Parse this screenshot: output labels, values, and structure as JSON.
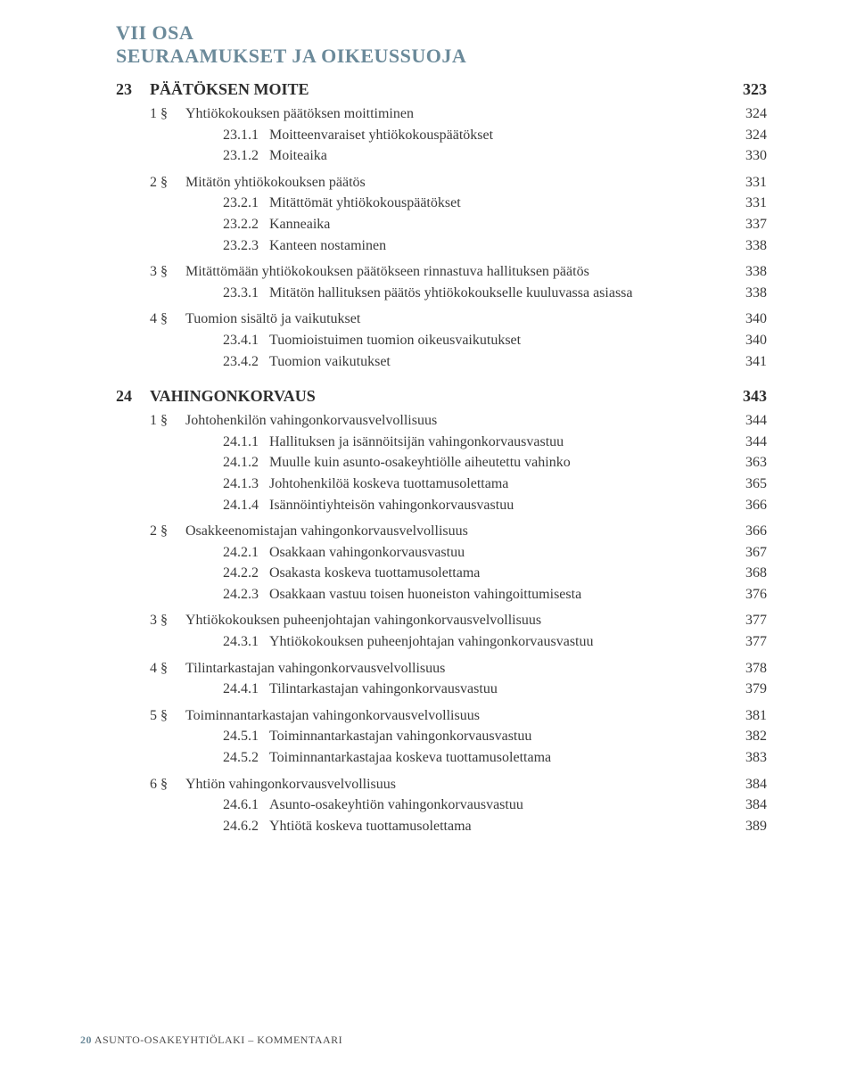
{
  "colors": {
    "accent": "#6b8a9a",
    "text": "#3a3a3a",
    "heading": "#2e2e2e",
    "background": "#ffffff"
  },
  "typography": {
    "body_fontsize": 16,
    "chapter_fontsize": 18,
    "part_fontsize": 22,
    "footer_fontsize": 12,
    "family": "Georgia, serif"
  },
  "part": {
    "label": "VII OSA",
    "title": "SEURAAMUKSET JA OIKEUSSUOJA"
  },
  "chapters": [
    {
      "num": "23",
      "title": "PÄÄTÖKSEN MOITE",
      "page": "323",
      "sections": [
        {
          "num": "1 §",
          "title": "Yhtiökokouksen päätöksen moittiminen",
          "page": "324",
          "subs": [
            {
              "num": "23.1.1",
              "title": "Moitteenvaraiset yhtiökokouspäätökset",
              "page": "324"
            },
            {
              "num": "23.1.2",
              "title": "Moiteaika",
              "page": "330"
            }
          ]
        },
        {
          "num": "2 §",
          "title": "Mitätön yhtiökokouksen päätös",
          "page": "331",
          "subs": [
            {
              "num": "23.2.1",
              "title": "Mitättömät yhtiökokouspäätökset",
              "page": "331"
            },
            {
              "num": "23.2.2",
              "title": "Kanneaika",
              "page": "337"
            },
            {
              "num": "23.2.3",
              "title": "Kanteen nostaminen",
              "page": "338"
            }
          ]
        },
        {
          "num": "3 §",
          "title": "Mitättömään yhtiökokouksen päätökseen rinnastuva hallituksen päätös",
          "page": "338",
          "subs": [
            {
              "num": "23.3.1",
              "title": "Mitätön hallituksen päätös yhtiökokoukselle kuuluvassa asiassa",
              "page": "338"
            }
          ]
        },
        {
          "num": "4 §",
          "title": "Tuomion sisältö ja vaikutukset",
          "page": "340",
          "subs": [
            {
              "num": "23.4.1",
              "title": "Tuomioistuimen tuomion oikeusvaikutukset",
              "page": "340"
            },
            {
              "num": "23.4.2",
              "title": "Tuomion vaikutukset",
              "page": "341"
            }
          ]
        }
      ]
    },
    {
      "num": "24",
      "title": "VAHINGONKORVAUS",
      "page": "343",
      "sections": [
        {
          "num": "1 §",
          "title": "Johtohenkilön vahingonkorvausvelvollisuus",
          "page": "344",
          "subs": [
            {
              "num": "24.1.1",
              "title": "Hallituksen ja isännöitsijän vahingonkorvausvastuu",
              "page": "344"
            },
            {
              "num": "24.1.2",
              "title": "Muulle kuin asunto-osakeyhtiölle aiheutettu vahinko",
              "page": "363"
            },
            {
              "num": "24.1.3",
              "title": "Johtohenkilöä koskeva tuottamusolettama",
              "page": "365"
            },
            {
              "num": "24.1.4",
              "title": "Isännöintiyhteisön vahingonkorvausvastuu",
              "page": "366"
            }
          ]
        },
        {
          "num": "2 §",
          "title": "Osakkeenomistajan vahingonkorvausvelvollisuus",
          "page": "366",
          "subs": [
            {
              "num": "24.2.1",
              "title": "Osakkaan vahingonkorvausvastuu",
              "page": "367"
            },
            {
              "num": "24.2.2",
              "title": "Osakasta koskeva tuottamusolettama",
              "page": "368"
            },
            {
              "num": "24.2.3",
              "title": "Osakkaan vastuu toisen huoneiston vahingoittumisesta",
              "page": "376"
            }
          ]
        },
        {
          "num": "3 §",
          "title": "Yhtiökokouksen puheenjohtajan vahingonkorvausvelvollisuus",
          "page": "377",
          "subs": [
            {
              "num": "24.3.1",
              "title": "Yhtiökokouksen puheenjohtajan vahingonkorvausvastuu",
              "page": "377"
            }
          ]
        },
        {
          "num": "4 §",
          "title": "Tilintarkastajan vahingonkorvausvelvollisuus",
          "page": "378",
          "subs": [
            {
              "num": "24.4.1",
              "title": "Tilintarkastajan vahingonkorvausvastuu",
              "page": "379"
            }
          ]
        },
        {
          "num": "5 §",
          "title": "Toiminnantarkastajan vahingonkorvausvelvollisuus",
          "page": "381",
          "subs": [
            {
              "num": "24.5.1",
              "title": "Toiminnantarkastajan vahingonkorvausvastuu",
              "page": "382"
            },
            {
              "num": "24.5.2",
              "title": "Toiminnantarkastajaa koskeva tuottamusolettama",
              "page": "383"
            }
          ]
        },
        {
          "num": "6 §",
          "title": "Yhtiön vahingonkorvausvelvollisuus",
          "page": "384",
          "subs": [
            {
              "num": "24.6.1",
              "title": "Asunto-osakeyhtiön vahingonkorvausvastuu",
              "page": "384"
            },
            {
              "num": "24.6.2",
              "title": "Yhtiötä koskeva tuottamusolettama",
              "page": "389"
            }
          ]
        }
      ]
    }
  ],
  "footer": {
    "pagenum": "20",
    "book": "ASUNTO-OSAKEYHTIÖLAKI – KOMMENTAARI"
  }
}
